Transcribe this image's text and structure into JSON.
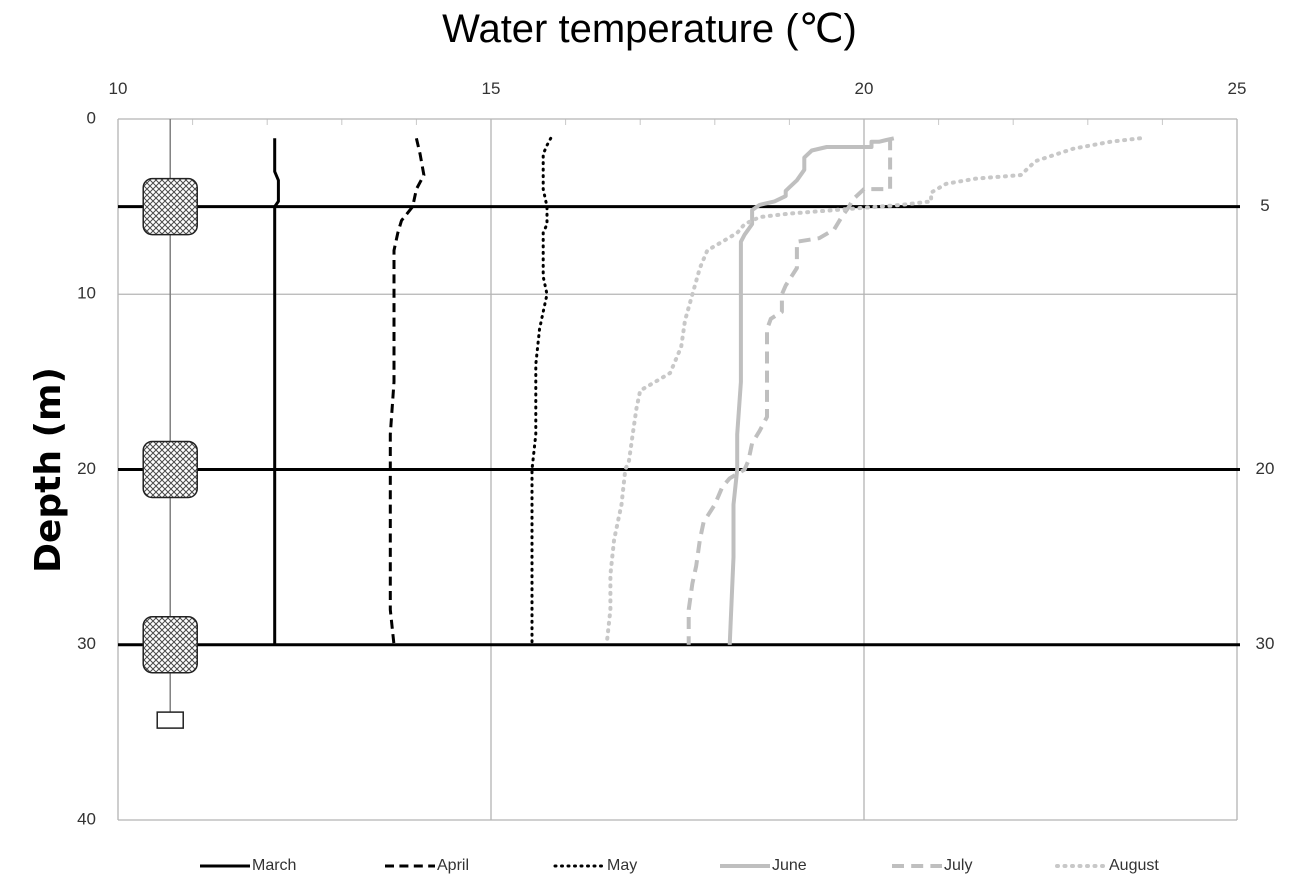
{
  "chart_data": {
    "type": "line",
    "title": "Water temperature (℃)",
    "xlabel": "Water temperature (℃)",
    "ylabel": "Depth (m)",
    "xlim": [
      10,
      25
    ],
    "ylim": [
      0,
      40
    ],
    "x_ticks": [
      10,
      15,
      20,
      25
    ],
    "y_ticks": [
      0,
      10,
      20,
      30,
      40
    ],
    "x_minor_grid": [
      11,
      12,
      13,
      14,
      16,
      17,
      18,
      19,
      21,
      22,
      23,
      24
    ],
    "y_minor_grid": [
      10,
      20,
      30
    ],
    "axis_position": "x-axis top, y-axis left, depth increasing downward",
    "reference_depths": [
      5,
      20,
      30
    ],
    "reference_labels": [
      "5",
      "20",
      "30"
    ],
    "mooring_line_temperature": 10.7,
    "mooring_float_depths": [
      5,
      20,
      30
    ],
    "mooring_anchor_depth": 34.3,
    "legend": [
      "March",
      "April",
      "May",
      "June",
      "July",
      "August"
    ],
    "legend_position": "bottom",
    "series": [
      {
        "name": "March",
        "style": "solid",
        "color": "#000000",
        "width": 3,
        "points": [
          [
            12.1,
            1.1
          ],
          [
            12.1,
            3.0
          ],
          [
            12.15,
            3.5
          ],
          [
            12.15,
            4.7
          ],
          [
            12.1,
            5.0
          ],
          [
            12.1,
            30.0
          ]
        ]
      },
      {
        "name": "April",
        "style": "dashed",
        "color": "#000000",
        "width": 3,
        "points": [
          [
            14.0,
            1.1
          ],
          [
            14.05,
            2.0
          ],
          [
            14.1,
            3.2
          ],
          [
            14.0,
            4.0
          ],
          [
            13.95,
            5.0
          ],
          [
            13.8,
            5.8
          ],
          [
            13.75,
            6.5
          ],
          [
            13.7,
            7.5
          ],
          [
            13.7,
            10.0
          ],
          [
            13.7,
            15.0
          ],
          [
            13.65,
            18.0
          ],
          [
            13.65,
            20.0
          ],
          [
            13.65,
            25.0
          ],
          [
            13.65,
            28.0
          ],
          [
            13.7,
            30.0
          ]
        ]
      },
      {
        "name": "May",
        "style": "dotted",
        "color": "#000000",
        "width": 3,
        "points": [
          [
            15.8,
            1.1
          ],
          [
            15.75,
            1.5
          ],
          [
            15.7,
            2.0
          ],
          [
            15.7,
            4.0
          ],
          [
            15.75,
            5.0
          ],
          [
            15.75,
            6.0
          ],
          [
            15.7,
            6.5
          ],
          [
            15.7,
            9.0
          ],
          [
            15.75,
            10.0
          ],
          [
            15.7,
            11.0
          ],
          [
            15.65,
            12.0
          ],
          [
            15.6,
            14.0
          ],
          [
            15.6,
            18.0
          ],
          [
            15.55,
            20.0
          ],
          [
            15.55,
            25.0
          ],
          [
            15.55,
            30.0
          ]
        ]
      },
      {
        "name": "June",
        "style": "solid",
        "color": "#bfbfbf",
        "width": 4,
        "points": [
          [
            20.4,
            1.1
          ],
          [
            20.3,
            1.2
          ],
          [
            20.2,
            1.3
          ],
          [
            20.1,
            1.3
          ],
          [
            20.1,
            1.6
          ],
          [
            19.5,
            1.6
          ],
          [
            19.3,
            1.8
          ],
          [
            19.2,
            2.2
          ],
          [
            19.2,
            2.9
          ],
          [
            19.1,
            3.5
          ],
          [
            19.0,
            3.9
          ],
          [
            18.95,
            4.1
          ],
          [
            18.95,
            4.4
          ],
          [
            18.8,
            4.7
          ],
          [
            18.6,
            4.9
          ],
          [
            18.5,
            5.2
          ],
          [
            18.5,
            6.0
          ],
          [
            18.4,
            6.6
          ],
          [
            18.35,
            7.0
          ],
          [
            18.35,
            10.0
          ],
          [
            18.35,
            15.0
          ],
          [
            18.3,
            18.0
          ],
          [
            18.3,
            20.0
          ],
          [
            18.25,
            22.0
          ],
          [
            18.25,
            25.0
          ],
          [
            18.2,
            30.0
          ]
        ]
      },
      {
        "name": "July",
        "style": "dashed",
        "color": "#bfbfbf",
        "width": 4,
        "points": [
          [
            20.35,
            1.1
          ],
          [
            20.35,
            4.0
          ],
          [
            20.0,
            4.0
          ],
          [
            19.85,
            4.6
          ],
          [
            19.8,
            5.0
          ],
          [
            19.7,
            5.6
          ],
          [
            19.6,
            6.3
          ],
          [
            19.4,
            6.8
          ],
          [
            19.1,
            7.0
          ],
          [
            19.1,
            8.5
          ],
          [
            18.95,
            9.5
          ],
          [
            18.9,
            10.0
          ],
          [
            18.9,
            11.0
          ],
          [
            18.75,
            11.4
          ],
          [
            18.7,
            12.0
          ],
          [
            18.7,
            17.0
          ],
          [
            18.6,
            17.8
          ],
          [
            18.5,
            18.5
          ],
          [
            18.45,
            19.5
          ],
          [
            18.4,
            20.0
          ],
          [
            18.2,
            20.5
          ],
          [
            18.1,
            21.0
          ],
          [
            18.0,
            22.0
          ],
          [
            17.85,
            23.0
          ],
          [
            17.8,
            24.0
          ],
          [
            17.75,
            25.5
          ],
          [
            17.7,
            26.5
          ],
          [
            17.65,
            28.0
          ],
          [
            17.65,
            30.0
          ]
        ]
      },
      {
        "name": "August",
        "style": "dotted",
        "color": "#c8c8c8",
        "width": 4,
        "points": [
          [
            23.7,
            1.1
          ],
          [
            23.3,
            1.3
          ],
          [
            22.8,
            1.7
          ],
          [
            22.3,
            2.4
          ],
          [
            22.1,
            3.2
          ],
          [
            21.5,
            3.4
          ],
          [
            21.1,
            3.7
          ],
          [
            20.9,
            4.2
          ],
          [
            20.9,
            4.7
          ],
          [
            20.5,
            4.9
          ],
          [
            20.2,
            5.0
          ],
          [
            19.6,
            5.2
          ],
          [
            19.0,
            5.4
          ],
          [
            18.6,
            5.6
          ],
          [
            18.4,
            6.0
          ],
          [
            18.3,
            6.5
          ],
          [
            18.1,
            7.0
          ],
          [
            17.9,
            7.5
          ],
          [
            17.8,
            8.5
          ],
          [
            17.7,
            10.0
          ],
          [
            17.6,
            11.5
          ],
          [
            17.55,
            13.0
          ],
          [
            17.45,
            14.0
          ],
          [
            17.4,
            14.5
          ],
          [
            17.2,
            15.0
          ],
          [
            17.0,
            15.5
          ],
          [
            16.95,
            16.5
          ],
          [
            16.9,
            18.0
          ],
          [
            16.85,
            19.5
          ],
          [
            16.8,
            20.0
          ],
          [
            16.75,
            22.0
          ],
          [
            16.7,
            23.0
          ],
          [
            16.65,
            24.0
          ],
          [
            16.6,
            26.0
          ],
          [
            16.6,
            28.0
          ],
          [
            16.55,
            30.0
          ]
        ]
      }
    ]
  }
}
